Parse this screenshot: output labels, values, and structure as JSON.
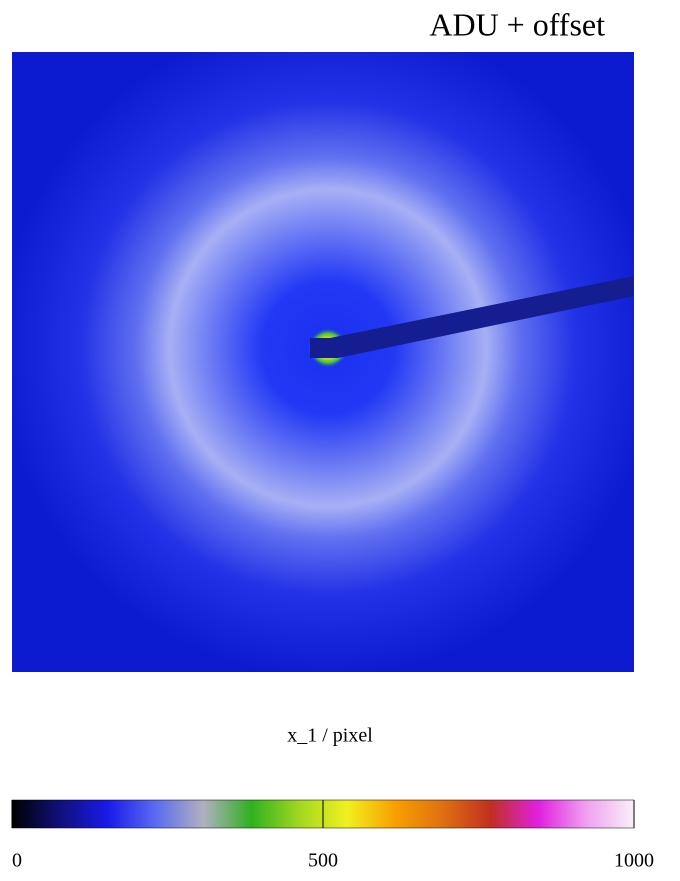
{
  "chart_data": {
    "type": "image",
    "title": "ADU + offset",
    "xlabel": "x_1 / pixel",
    "colorbar": {
      "lim": [
        0,
        1000
      ],
      "ticks": [
        0,
        500,
        1000
      ],
      "colormap": [
        "#000000",
        "#10107a",
        "#1a1ae8",
        "#5a6cf0",
        "#b0b0c0",
        "#30b020",
        "#a0d820",
        "#f0f020",
        "#f8a000",
        "#e07010",
        "#c03020",
        "#e020e0",
        "#f0a0f0",
        "#f8f0f8"
      ]
    }
  }
}
